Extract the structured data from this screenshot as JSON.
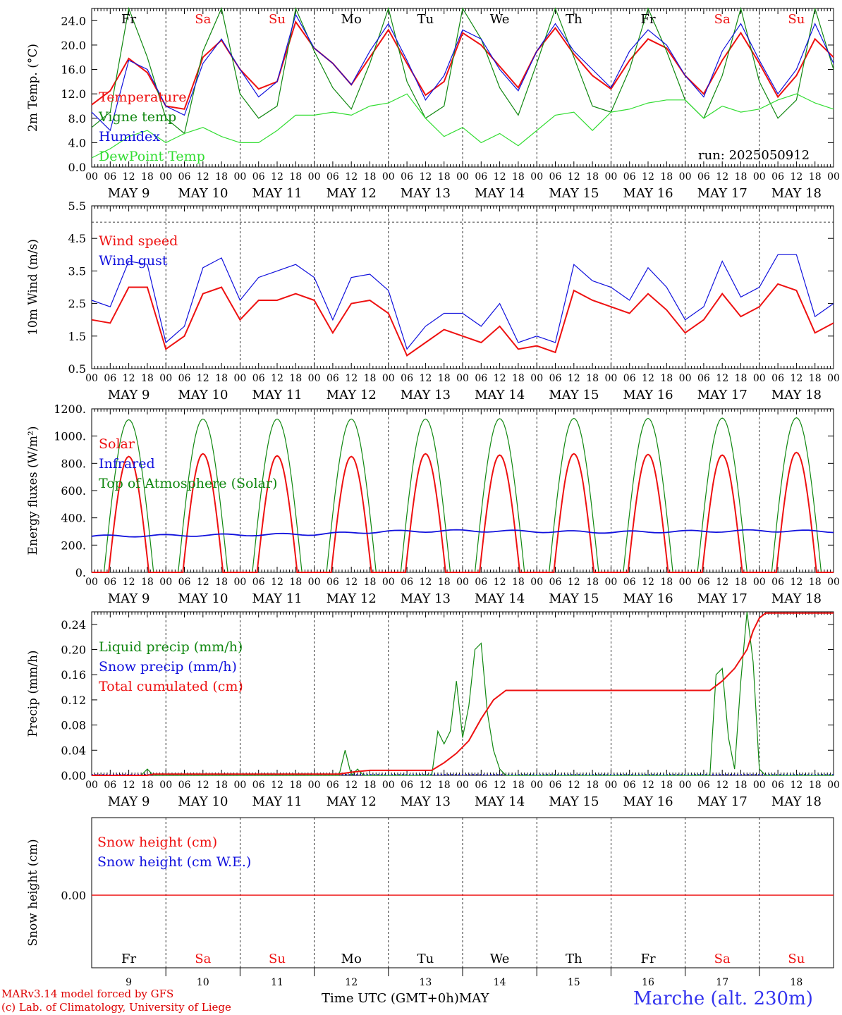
{
  "run_label": "run: 2025050912",
  "footer": {
    "model": "MARv3.14 model forced by GFS",
    "credit": "(c) Lab. of Climatology, University of Liege",
    "xaxis_label": "Time UTC (GMT+0h)",
    "month": "MAY",
    "station": "Marche (alt. 230m)"
  },
  "days": {
    "weekday": [
      "Fr",
      "Sa",
      "Su",
      "Mo",
      "Tu",
      "We",
      "Th",
      "Fr",
      "Sa",
      "Su"
    ],
    "weekend": [
      false,
      true,
      true,
      false,
      false,
      false,
      false,
      false,
      true,
      true
    ],
    "date_labels": [
      "MAY  9",
      "MAY 10",
      "MAY 11",
      "MAY 12",
      "MAY 13",
      "MAY 14",
      "MAY 15",
      "MAY 16",
      "MAY 17",
      "MAY 18"
    ],
    "day_numbers": [
      "9",
      "10",
      "11",
      "12",
      "13",
      "14",
      "15",
      "16",
      "17",
      "18"
    ],
    "hour_ticks": [
      "00",
      "06",
      "12",
      "18"
    ],
    "end_tick": "00"
  },
  "colors": {
    "red": "#ee1111",
    "darkgreen": "#118811",
    "blue": "#1111dd",
    "lightgreen": "#33dd33"
  },
  "chart_data": [
    {
      "type": "line",
      "ylabel": "2m Temp. (°C)",
      "ylim": [
        0,
        26
      ],
      "yticks": [
        "0.0",
        "4.0",
        "8.0",
        "12.0",
        "16.0",
        "20.0",
        "24.0"
      ],
      "x_unit": "hours since MAY 9 00 UTC",
      "series": [
        {
          "name": "Temperature",
          "color": "red",
          "x": [
            0,
            6,
            12,
            18,
            24,
            30,
            36,
            42,
            48,
            54,
            60,
            66,
            72,
            78,
            84,
            90,
            96,
            102,
            108,
            114,
            120,
            126,
            132,
            138,
            144,
            150,
            156,
            162,
            168,
            174,
            180,
            186,
            192,
            198,
            204,
            210,
            216,
            222,
            228,
            234,
            240
          ],
          "y": [
            10.2,
            12.5,
            17.8,
            15.5,
            10,
            9.5,
            18,
            20.8,
            16,
            12.8,
            14,
            23.8,
            19.5,
            17,
            13.5,
            18,
            22.5,
            17,
            11.8,
            14,
            22,
            20,
            16.5,
            13,
            19,
            22.8,
            18.5,
            15,
            12.8,
            17.5,
            21,
            19.5,
            15,
            12,
            17.5,
            22,
            17,
            11.5,
            15,
            21,
            18
          ]
        },
        {
          "name": "Vigne temp",
          "color": "darkgreen",
          "x": [
            0,
            6,
            12,
            18,
            24,
            30,
            36,
            42,
            48,
            54,
            60,
            66,
            72,
            78,
            84,
            90,
            96,
            102,
            108,
            114,
            120,
            126,
            132,
            138,
            144,
            150,
            156,
            162,
            168,
            174,
            180,
            186,
            192,
            198,
            204,
            210,
            216,
            222,
            228,
            234,
            240
          ],
          "y": [
            6.5,
            9,
            26,
            18,
            8,
            5.5,
            19,
            26,
            12,
            8,
            10,
            26,
            19,
            13,
            9.5,
            17,
            26,
            14,
            8,
            10,
            26,
            21,
            13,
            8.5,
            17,
            26,
            18,
            10,
            9,
            16,
            26,
            19,
            11,
            8,
            15,
            26,
            14,
            8,
            11,
            26,
            16
          ]
        },
        {
          "name": "Humidex",
          "color": "blue",
          "x": [
            0,
            6,
            12,
            18,
            24,
            30,
            36,
            42,
            48,
            54,
            60,
            66,
            72,
            78,
            84,
            90,
            96,
            102,
            108,
            114,
            120,
            126,
            132,
            138,
            144,
            150,
            156,
            162,
            168,
            174,
            180,
            186,
            192,
            198,
            204,
            210,
            216,
            222,
            228,
            234,
            240
          ],
          "y": [
            9,
            6,
            17.5,
            16,
            10,
            8.5,
            17,
            21,
            16,
            11.5,
            14,
            25,
            19.5,
            17,
            13.5,
            19,
            23.5,
            17.5,
            11,
            15,
            22.5,
            21,
            16,
            12.5,
            19,
            23.5,
            19,
            16,
            13,
            19,
            22.5,
            20,
            15,
            11.5,
            19,
            23.5,
            17.5,
            12,
            16,
            23.5,
            17
          ]
        },
        {
          "name": "DewPoint Temp",
          "color": "lightgreen",
          "x": [
            0,
            6,
            12,
            18,
            24,
            30,
            36,
            42,
            48,
            54,
            60,
            66,
            72,
            78,
            84,
            90,
            96,
            102,
            108,
            114,
            120,
            126,
            132,
            138,
            144,
            150,
            156,
            162,
            168,
            174,
            180,
            186,
            192,
            198,
            204,
            210,
            216,
            222,
            228,
            234,
            240
          ],
          "y": [
            1.5,
            3,
            5,
            6,
            4,
            5.5,
            6.5,
            5,
            4,
            4,
            6,
            8.5,
            8.5,
            9,
            8.5,
            10,
            10.5,
            12,
            8,
            5,
            6.5,
            4,
            5.5,
            3.5,
            6,
            8.5,
            9,
            6,
            9,
            9.5,
            10.5,
            11,
            11,
            8,
            10,
            9,
            9.5,
            11,
            12,
            10.5,
            9.5
          ]
        }
      ]
    },
    {
      "type": "line",
      "ylabel": "10m Wind (m/s)",
      "ylim": [
        0.5,
        5.5
      ],
      "yticks": [
        "0.5",
        "1.5",
        "2.5",
        "3.5",
        "4.5",
        "5.5"
      ],
      "ref_line": 5.0,
      "series": [
        {
          "name": "Wind speed",
          "color": "red",
          "x": [
            0,
            6,
            12,
            18,
            24,
            30,
            36,
            42,
            48,
            54,
            60,
            66,
            72,
            78,
            84,
            90,
            96,
            102,
            108,
            114,
            120,
            126,
            132,
            138,
            144,
            150,
            156,
            162,
            168,
            174,
            180,
            186,
            192,
            198,
            204,
            210,
            216,
            222,
            228,
            234,
            240
          ],
          "y": [
            2,
            1.9,
            3,
            3,
            1.1,
            1.5,
            2.8,
            3,
            2,
            2.6,
            2.6,
            2.8,
            2.6,
            1.6,
            2.5,
            2.6,
            2.2,
            0.9,
            1.3,
            1.7,
            1.5,
            1.3,
            1.8,
            1.1,
            1.2,
            1,
            2.9,
            2.6,
            2.4,
            2.2,
            2.8,
            2.3,
            1.6,
            2,
            2.8,
            2.1,
            2.4,
            3.1,
            2.9,
            1.6,
            1.9
          ]
        },
        {
          "name": "Wind gust",
          "color": "blue",
          "x": [
            0,
            6,
            12,
            18,
            24,
            30,
            36,
            42,
            48,
            54,
            60,
            66,
            72,
            78,
            84,
            90,
            96,
            102,
            108,
            114,
            120,
            126,
            132,
            138,
            144,
            150,
            156,
            162,
            168,
            174,
            180,
            186,
            192,
            198,
            204,
            210,
            216,
            222,
            228,
            234,
            240
          ],
          "y": [
            2.6,
            2.4,
            3.8,
            3.7,
            1.3,
            1.8,
            3.6,
            3.9,
            2.6,
            3.3,
            3.5,
            3.7,
            3.3,
            2,
            3.3,
            3.4,
            2.9,
            1.1,
            1.8,
            2.2,
            2.2,
            1.8,
            2.5,
            1.3,
            1.5,
            1.3,
            3.7,
            3.2,
            3,
            2.6,
            3.6,
            3,
            2,
            2.4,
            3.8,
            2.7,
            3,
            4,
            4,
            2.1,
            2.5
          ]
        }
      ]
    },
    {
      "type": "line",
      "ylabel": "Energy fluxes (W/m²)",
      "ylim": [
        0,
        1200
      ],
      "yticks": [
        "0.",
        "200.",
        "400.",
        "600.",
        "800.",
        "1000.",
        "1200."
      ],
      "series": [
        {
          "name": "Solar",
          "color": "red",
          "peaks": [
            850,
            870,
            855,
            850,
            870,
            860,
            870,
            865,
            860,
            880
          ]
        },
        {
          "name": "Infrared",
          "color": "blue",
          "base": [
            265,
            270,
            275,
            280,
            300,
            305,
            300,
            295,
            300,
            305,
            300
          ]
        },
        {
          "name": "Top of Atmosphere (Solar)",
          "color": "darkgreen",
          "peaks": [
            1120,
            1125,
            1125,
            1125,
            1125,
            1128,
            1130,
            1130,
            1132,
            1135
          ]
        }
      ]
    },
    {
      "type": "line",
      "ylabel": "Precip (mm/h)",
      "ylim": [
        0,
        0.26
      ],
      "yticks": [
        "0.00",
        "0.04",
        "0.08",
        "0.12",
        "0.16",
        "0.20",
        "0.24"
      ],
      "series": [
        {
          "name": "Liquid precip (mm/h)",
          "color": "darkgreen",
          "x": [
            0,
            16,
            18,
            20,
            24,
            80,
            82,
            84,
            86,
            88,
            90,
            110,
            112,
            114,
            116,
            118,
            120,
            122,
            124,
            126,
            128,
            130,
            132,
            134,
            136,
            200,
            202,
            204,
            206,
            208,
            210,
            212,
            214,
            216,
            218,
            240
          ],
          "y": [
            0,
            0,
            0.01,
            0,
            0,
            0,
            0.04,
            0,
            0.01,
            0,
            0,
            0,
            0.07,
            0.05,
            0.07,
            0.15,
            0.06,
            0.11,
            0.2,
            0.21,
            0.1,
            0.04,
            0.01,
            0,
            0,
            0,
            0.16,
            0.17,
            0.06,
            0.01,
            0.15,
            0.26,
            0.18,
            0.01,
            0,
            0
          ]
        },
        {
          "name": "Snow precip (mm/h)",
          "color": "blue",
          "x": [
            0,
            240
          ],
          "y": [
            0,
            0
          ]
        },
        {
          "name": "Total cumulated (cm)",
          "color": "red",
          "x": [
            0,
            18,
            20,
            80,
            84,
            90,
            110,
            114,
            118,
            122,
            126,
            130,
            134,
            200,
            204,
            208,
            212,
            214,
            216,
            218,
            240
          ],
          "y": [
            0,
            0,
            0.002,
            0.002,
            0.005,
            0.008,
            0.008,
            0.02,
            0.035,
            0.055,
            0.09,
            0.12,
            0.135,
            0.135,
            0.15,
            0.17,
            0.2,
            0.23,
            0.25,
            0.258,
            0.258
          ]
        }
      ]
    },
    {
      "type": "line",
      "ylabel": "Snow height (cm)",
      "yticks": [
        "0.00"
      ],
      "series": [
        {
          "name": "Snow height (cm)",
          "color": "red",
          "x": [
            0,
            240
          ],
          "y": [
            0,
            0
          ]
        },
        {
          "name": "Snow height (cm W.E.)",
          "color": "blue",
          "x": [
            0,
            240
          ],
          "y": [
            0,
            0
          ]
        }
      ]
    }
  ]
}
